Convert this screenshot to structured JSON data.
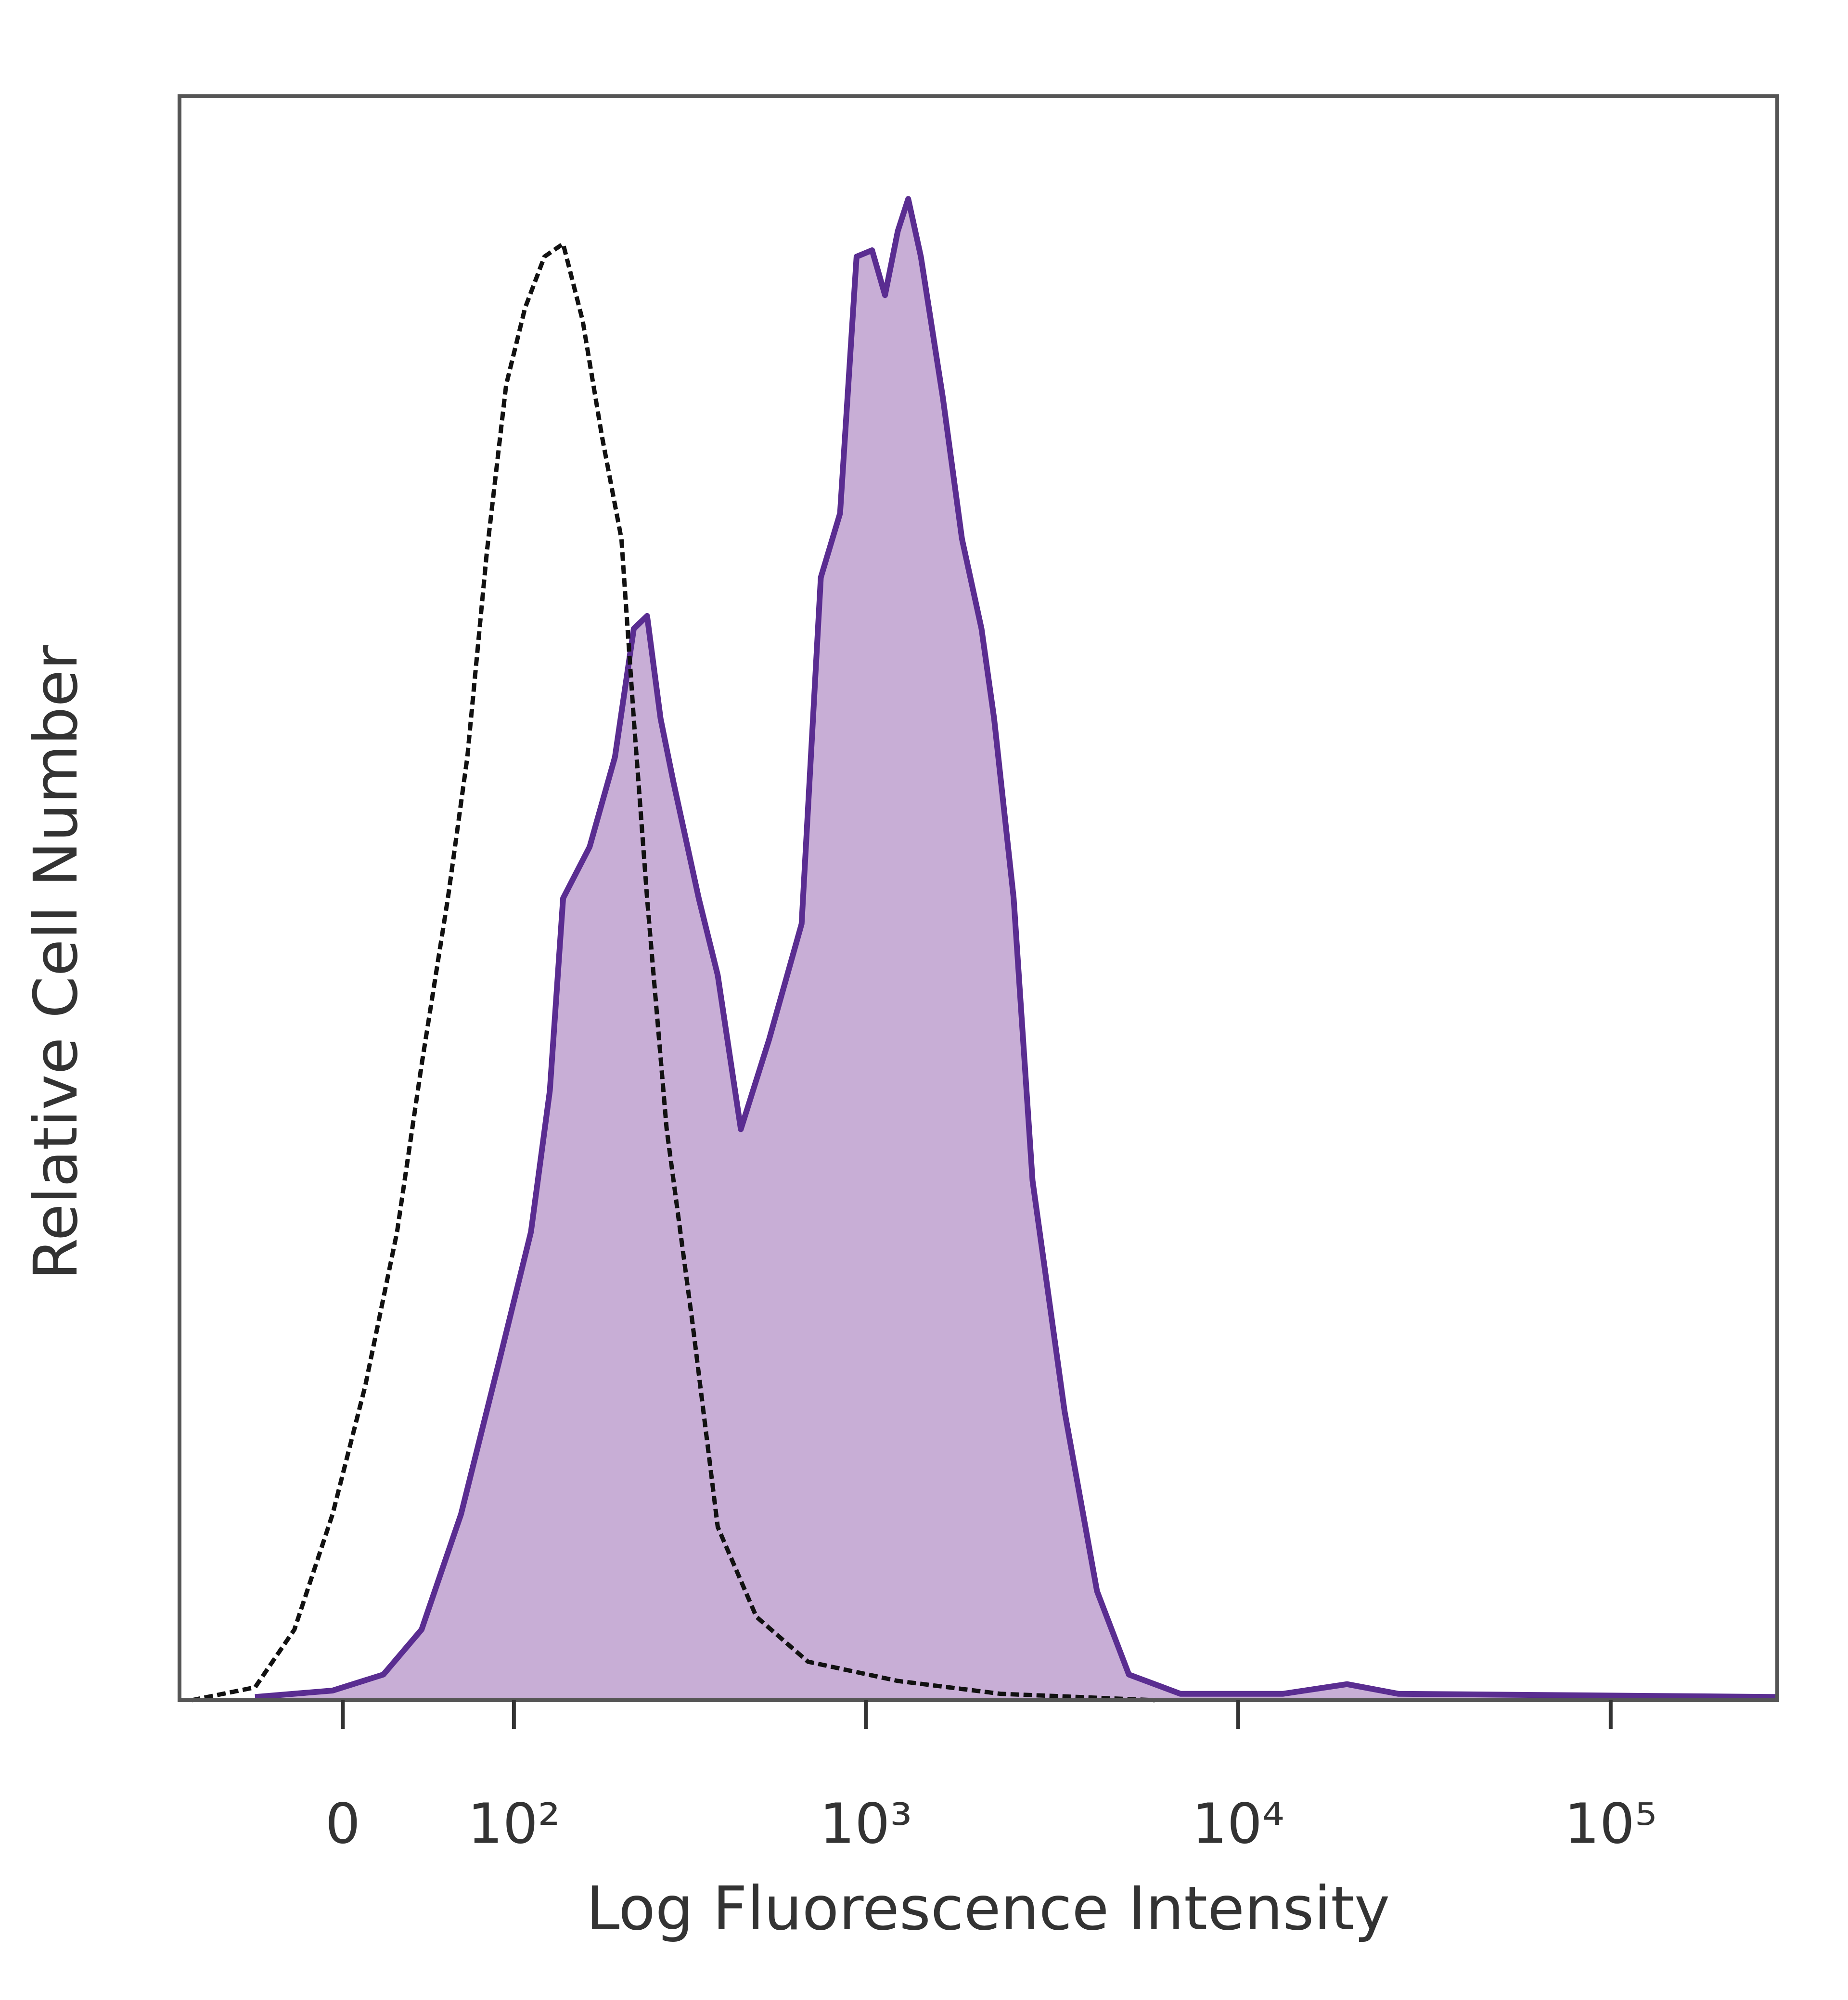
{
  "chart_data": {
    "type": "histogram-overlay",
    "xlabel": "Log Fluorescence Intensity",
    "ylabel": "Relative Cell Number",
    "xscale": "biexponential",
    "xlim": [
      -94,
      280000
    ],
    "ylim": [
      0,
      100
    ],
    "xticks": [
      0,
      {
        "value": 100,
        "label": "10²"
      },
      {
        "value": 1000,
        "label": "10³"
      },
      {
        "value": 10000,
        "label": "10⁴"
      },
      {
        "value": 100000,
        "label": "10⁵"
      }
    ],
    "series": [
      {
        "color": "#5a2d91",
        "fill": "#c8aed6",
        "style": "solid",
        "x": [
          -45,
          -5,
          20,
          40,
          63,
          89,
          114,
          131,
          144,
          173,
          205,
          232,
          253,
          276,
          300,
          352,
          397,
          459,
          548,
          671,
          756,
          852,
          944,
          1039,
          1126,
          1219,
          1300,
          1406,
          1611,
          1813,
          2046,
          2212,
          2496,
          2805,
          3421,
          4179,
          5088,
          7000,
          13200,
          19600,
          26900,
          280000
        ],
        "values": [
          0.2,
          0.6,
          1.6,
          4.4,
          11.6,
          21.2,
          29.2,
          38,
          50,
          53.2,
          58.8,
          66.8,
          67.6,
          61.2,
          57.2,
          50,
          45.2,
          35.6,
          41.2,
          48.4,
          70,
          74,
          90,
          90.4,
          87.6,
          91.6,
          93.6,
          90,
          81.2,
          72.4,
          66.8,
          61.2,
          50,
          32.4,
          18,
          6.8,
          1.6,
          0.4,
          0.4,
          1.0,
          0.4,
          0.2
        ]
      },
      {
        "color": "#111111",
        "style": "dashed",
        "x": [
          -85,
          -45,
          -24,
          -5,
          11,
          27,
          40,
          55,
          67,
          80,
          94,
          109,
          126,
          144,
          165,
          188,
          214,
          232,
          253,
          287,
          338,
          397,
          506,
          698,
          1219,
          2300,
          5966
        ],
        "values": [
          0,
          0.8,
          4.4,
          11.6,
          19.6,
          29.2,
          39.6,
          50,
          58.8,
          71.6,
          82,
          86.8,
          90,
          90.8,
          86,
          78.8,
          72.4,
          61.2,
          50,
          35.6,
          23.6,
          10.8,
          5.2,
          2.4,
          1.2,
          0.4,
          0
        ]
      }
    ]
  }
}
